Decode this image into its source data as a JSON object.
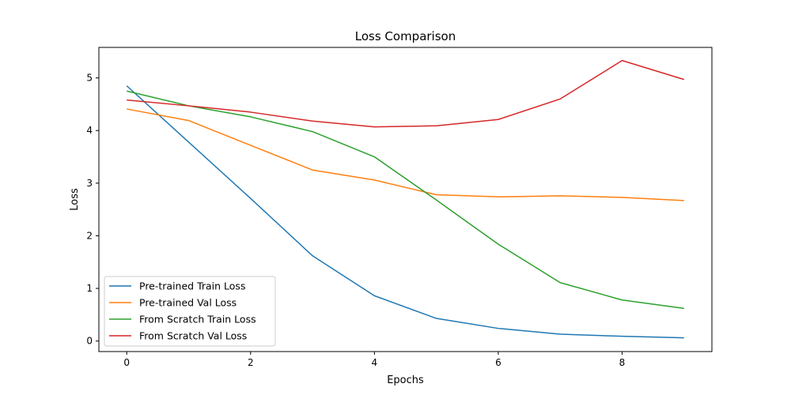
{
  "chart_data": {
    "type": "line",
    "title": "Loss Comparison",
    "xlabel": "Epochs",
    "ylabel": "Loss",
    "x": [
      0,
      1,
      2,
      3,
      4,
      5,
      6,
      7,
      8,
      9
    ],
    "xlim": [
      -0.45,
      9.45
    ],
    "ylim": [
      -0.2,
      5.58
    ],
    "xticks": [
      0,
      2,
      4,
      6,
      8
    ],
    "yticks": [
      0,
      1,
      2,
      3,
      4,
      5
    ],
    "grid": false,
    "legend_position": "lower-left",
    "series": [
      {
        "name": "Pre-trained Train Loss",
        "color": "#1f77b4",
        "values": [
          4.85,
          3.78,
          2.71,
          1.62,
          0.86,
          0.43,
          0.24,
          0.13,
          0.09,
          0.06
        ]
      },
      {
        "name": "Pre-trained Val Loss",
        "color": "#ff7f0e",
        "values": [
          4.41,
          4.19,
          3.72,
          3.25,
          3.06,
          2.78,
          2.74,
          2.76,
          2.73,
          2.67
        ]
      },
      {
        "name": "From Scratch Train Loss",
        "color": "#2ca02c",
        "values": [
          4.75,
          4.47,
          4.26,
          3.98,
          3.5,
          2.68,
          1.84,
          1.11,
          0.78,
          0.62
        ]
      },
      {
        "name": "From Scratch Val Loss",
        "color": "#d62728",
        "values": [
          4.58,
          4.47,
          4.35,
          4.18,
          4.07,
          4.09,
          4.21,
          4.6,
          5.33,
          4.97
        ]
      }
    ]
  }
}
